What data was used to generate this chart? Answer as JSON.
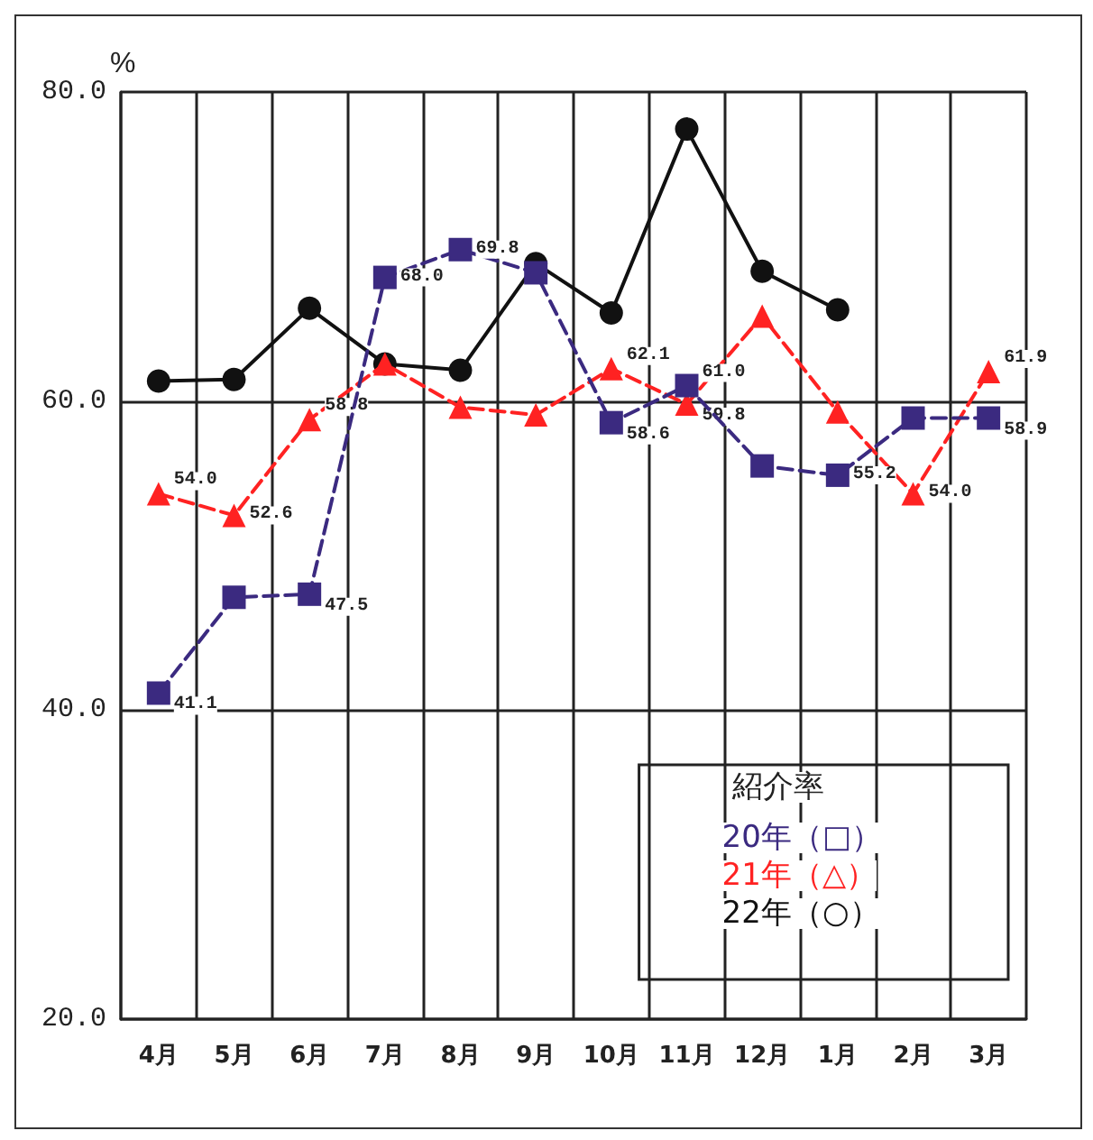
{
  "chart_data": {
    "type": "line",
    "ylabel": "%",
    "legend_title": "紹介率",
    "categories": [
      "4月",
      "5月",
      "6月",
      "7月",
      "8月",
      "9月",
      "10月",
      "11月",
      "12月",
      "1月",
      "2月",
      "3月"
    ],
    "series": [
      {
        "name": "20年（□）",
        "color": "#3b2a80",
        "marker": "square",
        "line_style": "dashed",
        "values": [
          41.1,
          47.3,
          47.5,
          68.0,
          69.8,
          68.3,
          58.6,
          61.0,
          55.8,
          55.2,
          58.9,
          58.9
        ],
        "value_labels": [
          "41.1",
          null,
          "47.5",
          "68.0",
          "69.8",
          null,
          "58.6",
          "61.0",
          null,
          "55.2",
          null,
          "58.9"
        ]
      },
      {
        "name": "21年（△）",
        "color": "#ff2222",
        "marker": "triangle",
        "line_style": "dashed",
        "values": [
          54.0,
          52.6,
          58.8,
          62.4,
          59.6,
          59.1,
          62.1,
          59.8,
          65.5,
          59.3,
          54.0,
          61.9
        ],
        "value_labels": [
          "54.0",
          "52.6",
          "58.8",
          null,
          null,
          null,
          "62.1",
          "59.8",
          null,
          null,
          "54.0",
          "61.9"
        ]
      },
      {
        "name": "22年（○）",
        "color": "#111111",
        "marker": "circle",
        "line_style": "solid",
        "values": [
          61.3,
          61.4,
          66.0,
          62.4,
          62.0,
          68.9,
          65.7,
          77.6,
          68.4,
          65.9,
          null,
          null
        ]
      }
    ],
    "ylim": [
      20,
      80
    ],
    "yticks": [
      {
        "value": 20,
        "label": "20.0"
      },
      {
        "value": 40,
        "label": "40.0"
      },
      {
        "value": 60,
        "label": "60.0"
      },
      {
        "value": 80,
        "label": "80.0"
      }
    ],
    "grid": true,
    "legend": "bottom right"
  }
}
